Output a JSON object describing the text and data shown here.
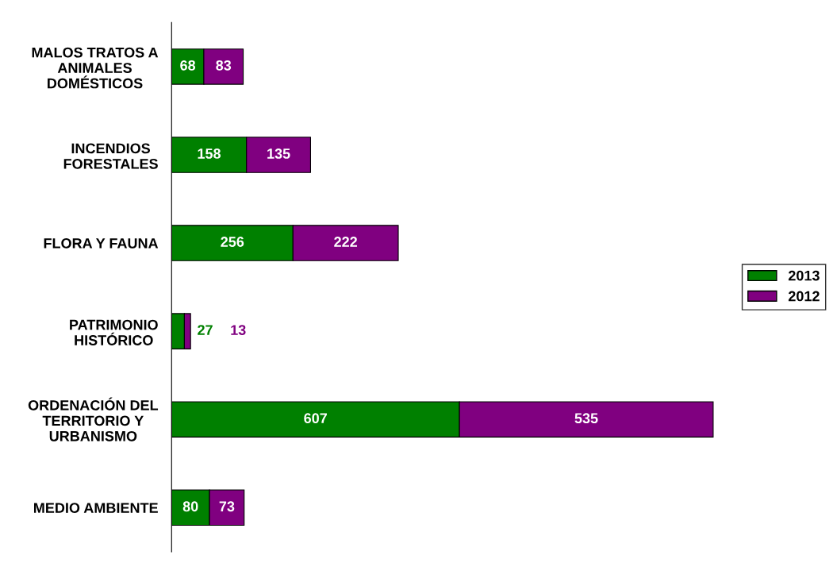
{
  "chart_data": {
    "type": "bar",
    "orientation": "horizontal",
    "stacked": true,
    "data_labels": true,
    "legend": "right",
    "grid": false,
    "categories": [
      "MALOS TRATOS A\nANIMALES\nDOMÉSTICOS",
      "INCENDIOS\nFORESTALES",
      "FLORA Y FAUNA",
      "PATRIMONIO\nHISTÓRICO",
      "ORDENACIÓN DEL\nTERRITORIO Y\nURBANISMO",
      "MEDIO AMBIENTE"
    ],
    "series": [
      {
        "name": "2013",
        "color": "#008000",
        "values": [
          68,
          158,
          256,
          27,
          607,
          80
        ]
      },
      {
        "name": "2012",
        "color": "#800080",
        "values": [
          83,
          135,
          222,
          13,
          535,
          73
        ]
      }
    ]
  }
}
